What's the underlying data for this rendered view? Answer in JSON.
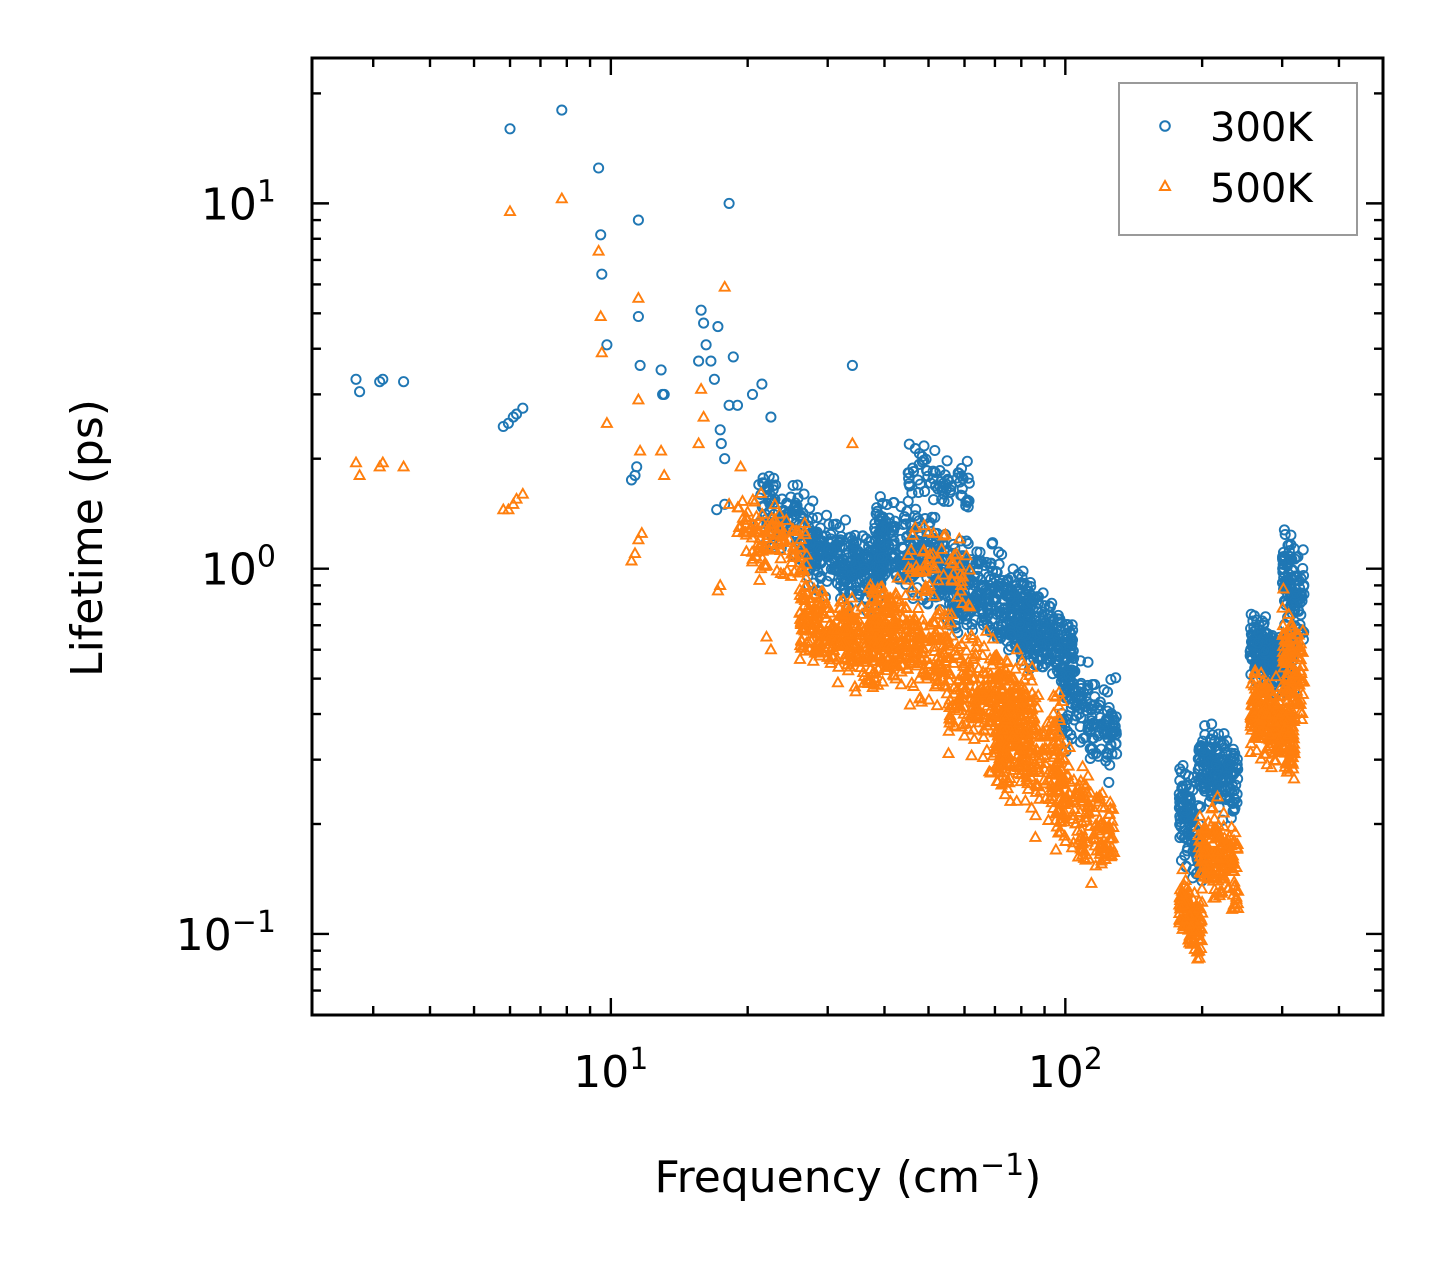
{
  "chart_data": {
    "type": "scatter",
    "xscale": "log",
    "yscale": "log",
    "xlim": [
      2.2,
      500
    ],
    "ylim": [
      0.06,
      25
    ],
    "xlabel": "Frequency (cm",
    "xlabel_sup": "−1",
    "xlabel_close": ")",
    "ylabel": "Lifetime (ps)",
    "x_major_ticks": [
      {
        "value": 10,
        "base": "10",
        "exp": "1"
      },
      {
        "value": 100,
        "base": "10",
        "exp": "2"
      }
    ],
    "y_major_ticks": [
      {
        "value": 0.1,
        "base": "10",
        "exp": "−1"
      },
      {
        "value": 1,
        "base": "10",
        "exp": "0"
      },
      {
        "value": 10,
        "base": "10",
        "exp": "1"
      }
    ],
    "legend": {
      "position": "top-right"
    },
    "series": [
      {
        "name": "300K",
        "marker": "circle",
        "color": "#1f77b4",
        "x": [
          2.75,
          2.8,
          3.1,
          3.15,
          3.5,
          5.8,
          5.95,
          6.1,
          6.2,
          6.4,
          6.0,
          7.8,
          9.4,
          9.5,
          9.55,
          9.8,
          11.5,
          11.5,
          11.6,
          11.3,
          11.4,
          11.1,
          12.9,
          13.1,
          15.6,
          15.8,
          16.0,
          16.2,
          16.6,
          16.9,
          17.2,
          17.4,
          17.8,
          18.2,
          18.6,
          18.2,
          19.0,
          17.8,
          17.1,
          17.5,
          34.0,
          13.0,
          20.5,
          21.5,
          22.5
        ],
        "y": [
          3.3,
          3.05,
          3.25,
          3.3,
          3.25,
          2.45,
          2.5,
          2.6,
          2.65,
          2.75,
          16.0,
          18.0,
          12.5,
          8.2,
          6.4,
          4.1,
          9.0,
          4.9,
          3.6,
          1.8,
          1.9,
          1.75,
          3.5,
          3.0,
          3.7,
          5.1,
          4.7,
          4.1,
          3.7,
          3.3,
          4.6,
          2.4,
          2.0,
          2.8,
          3.8,
          10.0,
          2.8,
          1.5,
          1.45,
          2.2,
          3.6,
          3.0,
          3.0,
          3.2,
          2.6
        ],
        "clusters": [
          {
            "x": [
              21,
              28
            ],
            "y": [
              1.0,
              1.9
            ],
            "n": 120
          },
          {
            "x": [
              27,
              40
            ],
            "y": [
              0.75,
              1.45
            ],
            "n": 280
          },
          {
            "x": [
              38,
              55
            ],
            "y": [
              0.75,
              1.6
            ],
            "n": 260
          },
          {
            "x": [
              45,
              62
            ],
            "y": [
              1.3,
              2.3
            ],
            "n": 70
          },
          {
            "x": [
              55,
              85
            ],
            "y": [
              0.55,
              1.25
            ],
            "n": 320
          },
          {
            "x": [
              75,
              105
            ],
            "y": [
              0.45,
              0.95
            ],
            "n": 260
          },
          {
            "x": [
              98,
              130
            ],
            "y": [
              0.26,
              0.6
            ],
            "n": 160
          },
          {
            "x": [
              178,
              200
            ],
            "y": [
              0.13,
              0.3
            ],
            "n": 120
          },
          {
            "x": [
              196,
              240
            ],
            "y": [
              0.2,
              0.4
            ],
            "n": 180
          },
          {
            "x": [
              255,
              320
            ],
            "y": [
              0.43,
              0.75
            ],
            "n": 260
          },
          {
            "x": [
              300,
              335
            ],
            "y": [
              0.6,
              1.35
            ],
            "n": 110
          }
        ]
      },
      {
        "name": "500K",
        "marker": "triangle",
        "color": "#ff7f0e",
        "x": [
          2.75,
          2.8,
          3.1,
          3.15,
          3.5,
          5.8,
          5.95,
          6.1,
          6.2,
          6.4,
          6.0,
          7.8,
          9.4,
          9.5,
          9.55,
          9.8,
          11.5,
          11.5,
          11.6,
          11.1,
          11.3,
          11.5,
          11.7,
          12.9,
          13.1,
          15.6,
          15.8,
          16.0,
          17.2,
          17.4,
          17.8,
          18.2,
          19.3,
          34.0,
          22.0,
          22.5
        ],
        "y": [
          1.95,
          1.8,
          1.9,
          1.95,
          1.9,
          1.45,
          1.45,
          1.5,
          1.55,
          1.6,
          9.5,
          10.3,
          7.4,
          4.9,
          3.9,
          2.5,
          5.5,
          2.9,
          2.1,
          1.05,
          1.1,
          1.2,
          1.25,
          2.1,
          1.8,
          2.2,
          3.1,
          2.6,
          0.87,
          0.9,
          5.9,
          1.5,
          1.9,
          2.2,
          0.65,
          0.6
        ],
        "clusters": [
          {
            "x": [
              19,
              27
            ],
            "y": [
              0.8,
              1.75
            ],
            "n": 120
          },
          {
            "x": [
              26,
              40
            ],
            "y": [
              0.45,
              0.95
            ],
            "n": 300
          },
          {
            "x": [
              37,
              55
            ],
            "y": [
              0.4,
              1.0
            ],
            "n": 280
          },
          {
            "x": [
              45,
              62
            ],
            "y": [
              0.7,
              1.45
            ],
            "n": 60
          },
          {
            "x": [
              55,
              85
            ],
            "y": [
              0.25,
              0.75
            ],
            "n": 340
          },
          {
            "x": [
              70,
              100
            ],
            "y": [
              0.18,
              0.55
            ],
            "n": 260
          },
          {
            "x": [
              95,
              128
            ],
            "y": [
              0.13,
              0.35
            ],
            "n": 170
          },
          {
            "x": [
              178,
              200
            ],
            "y": [
              0.082,
              0.15
            ],
            "n": 130
          },
          {
            "x": [
              196,
              240
            ],
            "y": [
              0.11,
              0.24
            ],
            "n": 180
          },
          {
            "x": [
              255,
              320
            ],
            "y": [
              0.26,
              0.55
            ],
            "n": 260
          },
          {
            "x": [
              300,
              335
            ],
            "y": [
              0.36,
              0.88
            ],
            "n": 110
          }
        ]
      }
    ]
  }
}
